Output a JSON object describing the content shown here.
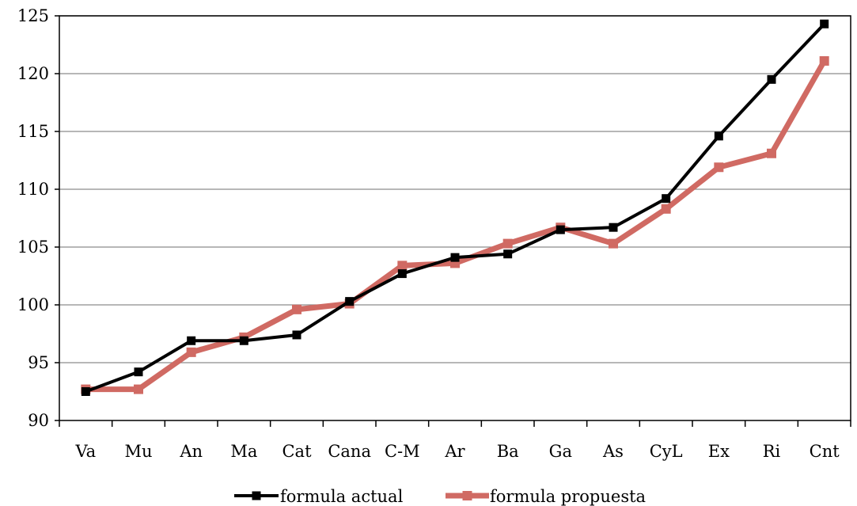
{
  "chart_data": {
    "type": "line",
    "title": "",
    "xlabel": "",
    "ylabel": "",
    "categories": [
      "Va",
      "Mu",
      "An",
      "Ma",
      "Cat",
      "Cana",
      "C-M",
      "Ar",
      "Ba",
      "Ga",
      "As",
      "CyL",
      "Ex",
      "Ri",
      "Cnt"
    ],
    "ylim": [
      90,
      125
    ],
    "yticks": [
      90,
      95,
      100,
      105,
      110,
      115,
      120,
      125
    ],
    "grid": true,
    "legend_position": "bottom",
    "series": [
      {
        "name": "formula actual",
        "color": "#000000",
        "values": [
          92.5,
          94.2,
          96.9,
          96.9,
          97.4,
          100.3,
          102.7,
          104.1,
          104.4,
          106.5,
          106.7,
          109.2,
          114.6,
          119.5,
          124.3
        ]
      },
      {
        "name": "formula propuesta",
        "color": "#d06a63",
        "values": [
          92.7,
          92.7,
          95.9,
          97.2,
          99.6,
          100.1,
          103.4,
          103.6,
          105.3,
          106.7,
          105.3,
          108.3,
          111.9,
          113.1,
          121.1
        ]
      }
    ]
  }
}
